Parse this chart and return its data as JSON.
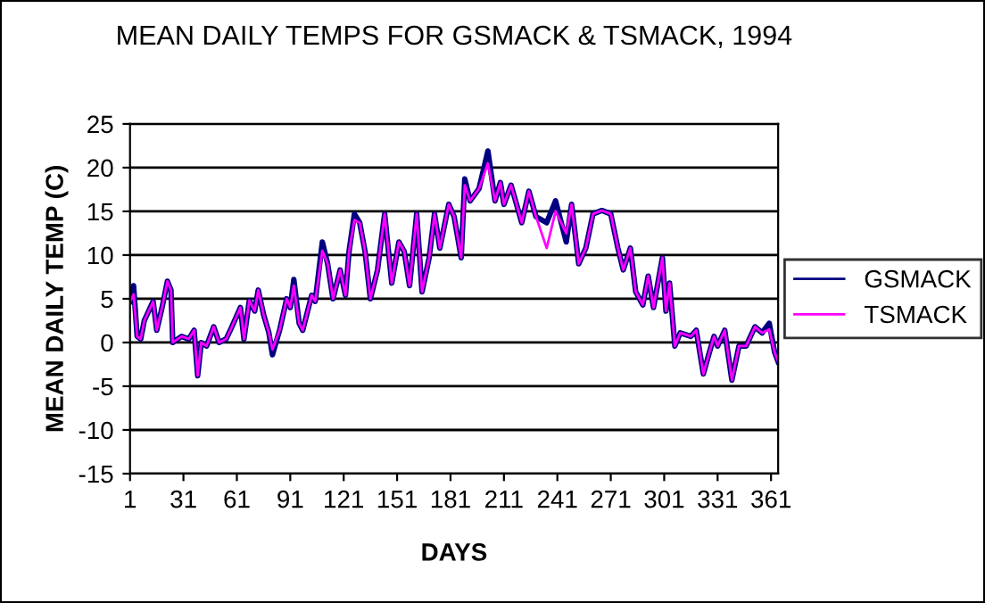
{
  "chart_data": {
    "type": "line",
    "title": "MEAN DAILY TEMPS FOR GSMACK & TSMACK, 1994",
    "xlabel": "DAYS",
    "ylabel": "MEAN DAILY TEMP (C)",
    "x": [
      1,
      3,
      5,
      7,
      9,
      14,
      16,
      19,
      22,
      24,
      25,
      30,
      34,
      37,
      39,
      41,
      44,
      48,
      51,
      55,
      58,
      63,
      65,
      68,
      71,
      73,
      76,
      79,
      81,
      85,
      89,
      91,
      93,
      96,
      98,
      103,
      105,
      109,
      112,
      115,
      119,
      122,
      124,
      127,
      130,
      133,
      136,
      140,
      144,
      148,
      152,
      155,
      158,
      162,
      165,
      169,
      172,
      175,
      180,
      183,
      187,
      189,
      192,
      197,
      202,
      206,
      209,
      211,
      215,
      221,
      225,
      229,
      235,
      240,
      246,
      249,
      253,
      257,
      261,
      266,
      271,
      275,
      278,
      282,
      285,
      289,
      292,
      295,
      300,
      302,
      304,
      307,
      310,
      316,
      319,
      323,
      326,
      329,
      331,
      335,
      339,
      343,
      347,
      352,
      356,
      360,
      363,
      365
    ],
    "series": [
      {
        "name": "GSMACK",
        "color": "#000080",
        "values": [
          4.7,
          6.5,
          0.7,
          0.4,
          2.5,
          4.7,
          1.4,
          4,
          7,
          6,
          0,
          0.7,
          0.4,
          1.4,
          -3.8,
          0,
          -0.4,
          1.8,
          0,
          0.4,
          1.7,
          4,
          0.4,
          4.8,
          3.6,
          6,
          3.2,
          1.1,
          -1.4,
          1.4,
          5,
          4,
          7.2,
          2.2,
          1.4,
          5.4,
          4.7,
          11.5,
          9,
          5,
          8.3,
          5.4,
          10.4,
          14.7,
          13.7,
          10.4,
          5,
          8.3,
          14.7,
          6.8,
          11.5,
          10.4,
          6.5,
          14.7,
          5.8,
          9.7,
          14.7,
          10.8,
          15.8,
          14.4,
          9.7,
          18.7,
          16.2,
          17.6,
          21.9,
          16.2,
          18.3,
          15.8,
          18,
          13.7,
          17.3,
          14.4,
          13.7,
          16.2,
          11.5,
          15.8,
          9,
          10.8,
          14.7,
          15.1,
          14.7,
          10.8,
          8.3,
          10.8,
          5.8,
          4.3,
          7.6,
          4,
          9.7,
          3.6,
          6.8,
          -0.4,
          1.1,
          0.7,
          1.4,
          -3.6,
          -1.4,
          0.7,
          -0.4,
          1.4,
          -4.3,
          -0.4,
          -0.4,
          1.8,
          1.1,
          2.2,
          -1.1,
          -2.2
        ]
      },
      {
        "name": "TSMACK",
        "color": "#ff00ff",
        "values": [
          4.7,
          5.5,
          0.7,
          0.4,
          2.5,
          4.7,
          1.4,
          4,
          7,
          6,
          0,
          0.7,
          0.4,
          1.4,
          -3.8,
          0,
          -0.4,
          1.8,
          0,
          0.4,
          1.7,
          4,
          0.4,
          4.8,
          3.6,
          6,
          3.2,
          1.1,
          -0.8,
          1.4,
          5,
          4,
          6.5,
          2.2,
          1.4,
          5.4,
          4.7,
          10.5,
          9,
          5,
          8.3,
          5.4,
          10.4,
          14,
          13.7,
          10.4,
          5,
          8.3,
          14.7,
          6.8,
          11.5,
          10.4,
          6.5,
          14.7,
          5.8,
          9.7,
          14.7,
          10.8,
          15.8,
          14.4,
          9.7,
          18,
          16.2,
          17.6,
          20.5,
          16.2,
          18.3,
          15.8,
          18,
          13.7,
          17.3,
          14.4,
          10.8,
          15,
          12.5,
          15.8,
          9,
          10.8,
          14.7,
          15.1,
          14.7,
          10.8,
          8.3,
          10.8,
          5.8,
          4.3,
          7.6,
          4,
          9.7,
          3.6,
          6.8,
          -0.4,
          1.1,
          0.7,
          1.4,
          -3.6,
          -1.4,
          0.7,
          -0.4,
          1.4,
          -4.3,
          -0.4,
          -0.4,
          1.8,
          1.1,
          1.5,
          -1.1,
          -2.2
        ]
      }
    ],
    "xlim": [
      1,
      365
    ],
    "xticks": [
      1,
      31,
      61,
      91,
      121,
      151,
      181,
      211,
      241,
      271,
      301,
      331,
      361
    ],
    "ylim": [
      -15,
      25
    ],
    "yticks": [
      -15,
      -10,
      -5,
      0,
      5,
      10,
      15,
      20,
      25
    ],
    "grid": "y",
    "legend": "right",
    "marker": "none",
    "line_style": "solid"
  }
}
